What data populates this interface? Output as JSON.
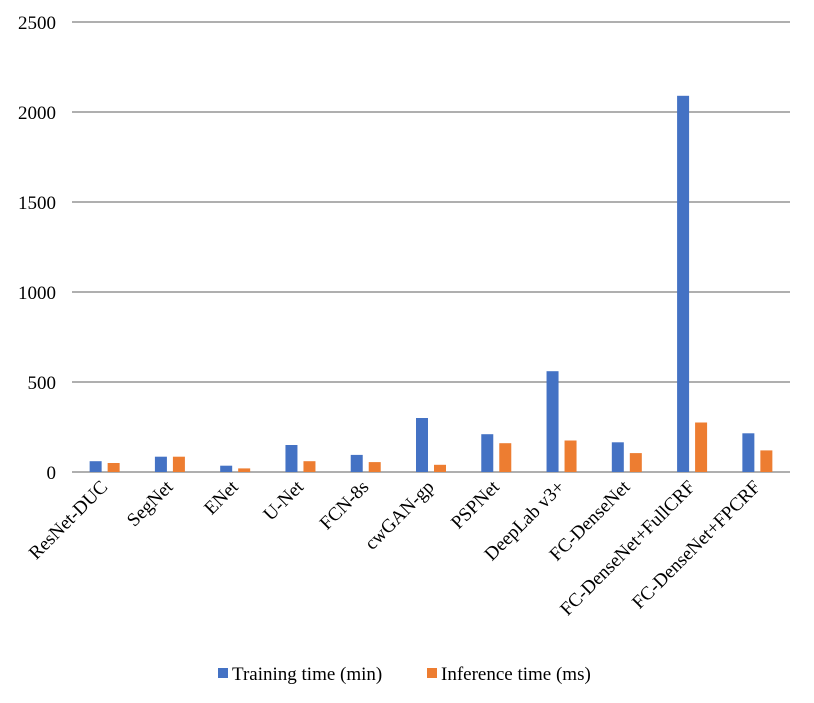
{
  "chart_data": {
    "type": "bar",
    "title": "",
    "xlabel": "",
    "ylabel": "",
    "ylim": [
      0,
      2500
    ],
    "yticks": [
      0,
      500,
      1000,
      1500,
      2000,
      2500
    ],
    "grid": true,
    "legend_position": "bottom",
    "categories": [
      "ResNet-DUC",
      "SegNet",
      "ENet",
      "U-Net",
      "FCN-8s",
      "cwGAN-gp",
      "PSPNet",
      "DeepLab v3+",
      "FC-DenseNet",
      "FC-DenseNet+FullCRF",
      "FC-DenseNet+FPCRF"
    ],
    "series": [
      {
        "name": "Training time (min)",
        "color": "#4472C4",
        "values": [
          60,
          85,
          35,
          150,
          95,
          300,
          210,
          560,
          165,
          2090,
          215
        ]
      },
      {
        "name": "Inference time (ms)",
        "color": "#ED7D31",
        "values": [
          50,
          85,
          20,
          60,
          55,
          40,
          160,
          175,
          105,
          275,
          120
        ]
      }
    ]
  }
}
